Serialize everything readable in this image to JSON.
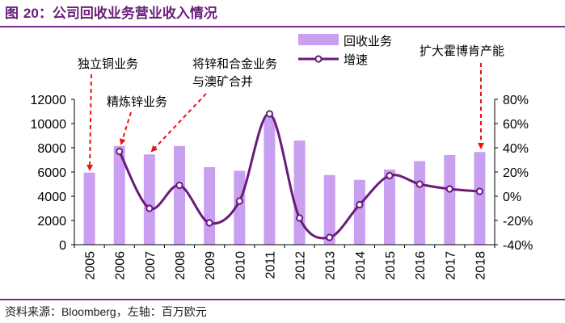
{
  "figure": {
    "title_prefix": "图 ",
    "title_number": "20",
    "title_text": "：公司回收业务营业收入情况"
  },
  "source": {
    "label": "资料来源：",
    "name": "Bloomberg",
    "note": "，左轴：百万欧元"
  },
  "chart_data": {
    "type": "bar",
    "categories": [
      "2005",
      "2006",
      "2007",
      "2008",
      "2009",
      "2010",
      "2011",
      "2012",
      "2013",
      "2014",
      "2015",
      "2016",
      "2017",
      "2018"
    ],
    "series": [
      {
        "name": "回收业务",
        "type": "bar",
        "axis": "left",
        "color": "#c9a0f0",
        "values": [
          5950,
          8150,
          7450,
          8150,
          6400,
          6100,
          10500,
          8600,
          5750,
          5350,
          6200,
          6900,
          7400,
          7650
        ]
      },
      {
        "name": "增速",
        "type": "line",
        "axis": "right",
        "color": "#6a1a7a",
        "smooth": true,
        "values": [
          null,
          37,
          -10,
          9,
          -22,
          -4,
          68,
          -18,
          -34,
          -7,
          17,
          10,
          6,
          4
        ]
      }
    ],
    "y_left": {
      "min": 0,
      "max": 12000,
      "ticks": [
        0,
        2000,
        4000,
        6000,
        8000,
        10000,
        12000
      ]
    },
    "y_right": {
      "min": -40,
      "max": 80,
      "ticks": [
        -40,
        -20,
        0,
        20,
        40,
        60,
        80
      ],
      "tick_format": "percent"
    },
    "legend_position": "top-right",
    "grid": false,
    "annotations": [
      {
        "text_lines": [
          "独立铜业务"
        ],
        "target": "2005"
      },
      {
        "text_lines": [
          "精炼锌业务"
        ],
        "target": "2006"
      },
      {
        "text_lines": [
          "将锌和合金业务",
          "与澳矿合并"
        ],
        "target": "2007"
      },
      {
        "text_lines": [
          "扩大霍博肯产能"
        ],
        "target": "2018"
      }
    ]
  }
}
